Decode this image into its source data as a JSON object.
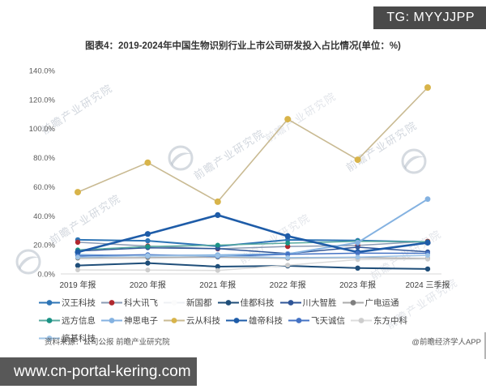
{
  "banner": {
    "text": "TG: MYYJJPP"
  },
  "title": "图表4：2019-2024年中国生物识别行业上市公司研发投入占比情况(单位：%)",
  "chart_data": {
    "type": "line",
    "title": "图表4：2019-2024年中国生物识别行业上市公司研发投入占比情况(单位：%)",
    "categories": [
      "2019 年报",
      "2020 年报",
      "2021 年报",
      "2022 年报",
      "2023 年报",
      "2024 三季报"
    ],
    "ylim": [
      0,
      140
    ],
    "ytick_step": 20,
    "ytick_suffix": "%",
    "grid": false,
    "legend_position": "bottom",
    "series": [
      {
        "name": "汉王科技",
        "color": "#2E75B6",
        "marker_color": "#2E75B6",
        "width": 2,
        "marker_r": 3.2,
        "values": [
          23.5,
          22.8,
          19.0,
          23.4,
          23.0,
          22.0
        ]
      },
      {
        "name": "科大讯飞",
        "color": "#8A9BB4",
        "marker_color": "#B0282E",
        "width": 1.5,
        "marker_r": 3.2,
        "values": [
          21.8,
          19.2,
          17.3,
          18.9,
          19.6,
          22.4
        ]
      },
      {
        "name": "新国都",
        "color": "#EFF1F4",
        "marker_color": "#FBFBFB",
        "width": 1.5,
        "marker_r": 3.0,
        "values": [
          9.8,
          10.3,
          10.8,
          10.2,
          10.6,
          10.1
        ]
      },
      {
        "name": "佳都科技",
        "color": "#1F4E79",
        "marker_color": "#1F4E79",
        "width": 2,
        "marker_r": 3.2,
        "values": [
          5.8,
          7.5,
          5.0,
          5.6,
          4.0,
          3.4
        ]
      },
      {
        "name": "川大智胜",
        "color": "#2F5597",
        "marker_color": "#2F5597",
        "width": 1.5,
        "marker_r": 3.0,
        "values": [
          15.8,
          18.0,
          17.4,
          14.0,
          18.4,
          15.2
        ]
      },
      {
        "name": "广电运通",
        "color": "#ABABAB",
        "marker_color": "#7F7F7F",
        "width": 1.5,
        "marker_r": 3.0,
        "values": [
          10.9,
          11.2,
          11.6,
          10.8,
          11.2,
          10.6
        ]
      },
      {
        "name": "远方信息",
        "color": "#57A99F",
        "marker_color": "#1B9385",
        "width": 1.5,
        "marker_r": 3.0,
        "values": [
          16.5,
          18.8,
          19.8,
          21.2,
          22.4,
          22.1
        ]
      },
      {
        "name": "神思电子",
        "color": "#84B2E1",
        "marker_color": "#84B2E1",
        "width": 2,
        "marker_r": 3.4,
        "values": [
          13.2,
          12.4,
          13.0,
          13.8,
          21.6,
          51.5
        ]
      },
      {
        "name": "云从科技",
        "color": "#C9BA92",
        "marker_color": "#D8B44A",
        "width": 1.6,
        "marker_r": 4.0,
        "values": [
          56.3,
          76.6,
          49.7,
          106.5,
          78.6,
          128.3
        ]
      },
      {
        "name": "雄帝科技",
        "color": "#1E5CA8",
        "marker_color": "#1E5CA8",
        "width": 2.6,
        "marker_r": 3.6,
        "values": [
          15.0,
          27.5,
          40.5,
          26.0,
          15.0,
          21.5
        ]
      },
      {
        "name": "飞天诚信",
        "color": "#4472C4",
        "marker_color": "#4472C4",
        "width": 1.5,
        "marker_r": 3.0,
        "values": [
          12.3,
          13.2,
          12.0,
          13.5,
          14.3,
          14.2
        ]
      },
      {
        "name": "东方中科",
        "color": "#DCDCDC",
        "marker_color": "#CDCDCD",
        "width": 1.5,
        "marker_r": 3.0,
        "values": [
          2.8,
          2.6,
          2.4,
          6.0,
          9.8,
          10.2
        ]
      },
      {
        "name": "熵基科技",
        "color": "#9DC3E6",
        "marker_color": "#9DC3E6",
        "width": 1.5,
        "marker_r": 3.0,
        "values": [
          11.5,
          12.6,
          12.4,
          11.2,
          11.6,
          12.8
        ]
      }
    ]
  },
  "footer": {
    "source": "资料来源：公司公报 前瞻产业研究院",
    "credit": "@前瞻经济学人APP"
  },
  "bottom_bar": {
    "text": "www.cn-portal-kering.com"
  },
  "watermark": {
    "text": "前瞻产业研究院"
  }
}
